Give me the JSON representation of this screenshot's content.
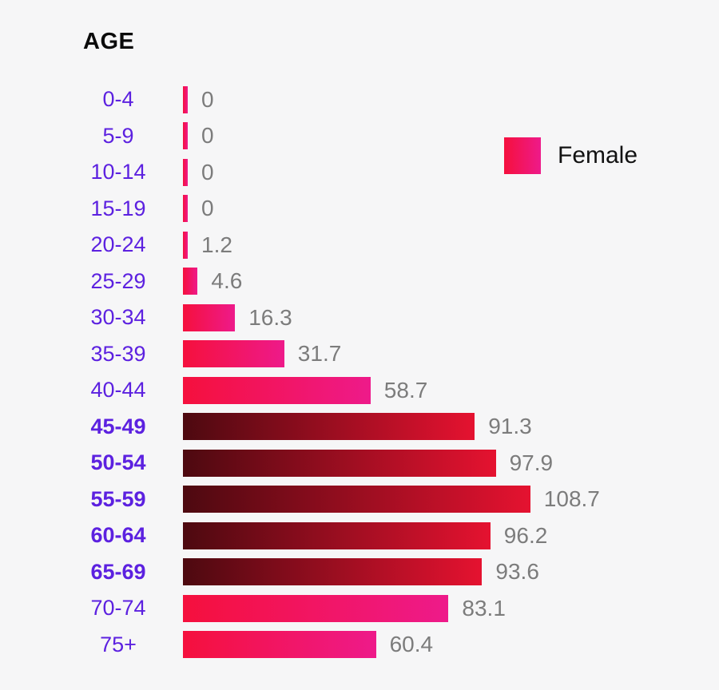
{
  "chart_data": {
    "type": "bar",
    "orientation": "horizontal",
    "title": "AGE",
    "categories": [
      "0-4",
      "5-9",
      "10-14",
      "15-19",
      "20-24",
      "25-29",
      "30-34",
      "35-39",
      "40-44",
      "45-49",
      "50-54",
      "55-59",
      "60-64",
      "65-69",
      "70-74",
      "75+"
    ],
    "series": [
      {
        "name": "Female",
        "values": [
          0,
          0,
          0,
          0,
          1.2,
          4.6,
          16.3,
          31.7,
          58.7,
          91.3,
          97.9,
          108.7,
          96.2,
          93.6,
          83.1,
          60.4
        ]
      }
    ],
    "value_labels": [
      "0",
      "0",
      "0",
      "0",
      "1.2",
      "4.6",
      "16.3",
      "31.7",
      "58.7",
      "91.3",
      "97.9",
      "108.7",
      "96.2",
      "93.6",
      "83.1",
      "60.4"
    ],
    "highlighted_categories": [
      "45-49",
      "50-54",
      "55-59",
      "60-64",
      "65-69"
    ],
    "xlim": [
      0,
      110
    ],
    "grid": false,
    "legend_position": "top-right",
    "colors": {
      "background": "#f6f6f7",
      "bar_gradient_start": "#f5103d",
      "bar_gradient_end": "#ee1a8a",
      "highlight_gradient_start": "#4d0910",
      "highlight_gradient_end": "#e51230",
      "age_label": "#5c21e0",
      "value_label": "#7c7c7c",
      "title": "#0b0b0b"
    }
  }
}
